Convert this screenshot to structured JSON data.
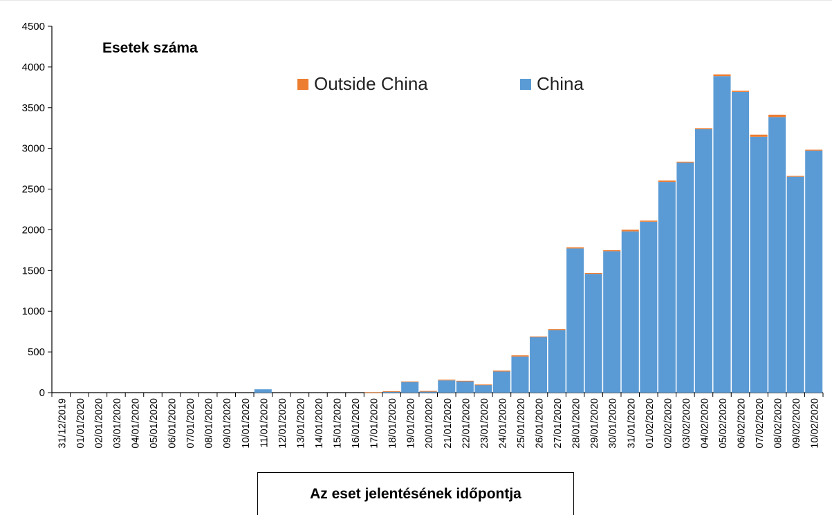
{
  "chart_data": {
    "type": "bar",
    "stacked": true,
    "ylabel": "Esetek száma",
    "xlabel": "Az eset jelentésének időpontja",
    "ylim": [
      0,
      4500
    ],
    "yticks": [
      0,
      500,
      1000,
      1500,
      2000,
      2500,
      3000,
      3500,
      4000,
      4500
    ],
    "grid": false,
    "legend_position": "top-center",
    "categories": [
      "31/12/2019",
      "01/01/2020",
      "02/01/2020",
      "03/01/2020",
      "04/01/2020",
      "05/01/2020",
      "06/01/2020",
      "07/01/2020",
      "08/01/2020",
      "09/01/2020",
      "10/01/2020",
      "11/01/2020",
      "12/01/2020",
      "13/01/2020",
      "14/01/2020",
      "15/01/2020",
      "16/01/2020",
      "17/01/2020",
      "18/01/2020",
      "19/01/2020",
      "20/01/2020",
      "21/01/2020",
      "22/01/2020",
      "23/01/2020",
      "24/01/2020",
      "25/01/2020",
      "26/01/2020",
      "27/01/2020",
      "28/01/2020",
      "29/01/2020",
      "30/01/2020",
      "31/01/2020",
      "01/02/2020",
      "02/02/2020",
      "03/02/2020",
      "04/02/2020",
      "05/02/2020",
      "06/02/2020",
      "07/02/2020",
      "08/02/2020",
      "09/02/2020",
      "10/02/2020"
    ],
    "series": [
      {
        "name": "China",
        "color": "#5b9bd5",
        "values": [
          0,
          0,
          0,
          0,
          0,
          0,
          0,
          0,
          0,
          0,
          0,
          41,
          0,
          0,
          0,
          0,
          0,
          4,
          17,
          136,
          19,
          151,
          140,
          97,
          259,
          444,
          688,
          769,
          1771,
          1459,
          1737,
          1981,
          2099,
          2589,
          2825,
          3235,
          3887,
          3694,
          3143,
          3385,
          2652,
          2973
        ]
      },
      {
        "name": "Outside China",
        "color": "#ed7d31",
        "values": [
          0,
          0,
          0,
          0,
          0,
          0,
          0,
          0,
          0,
          0,
          0,
          0,
          0,
          0,
          0,
          0,
          0,
          1,
          1,
          1,
          1,
          8,
          6,
          3,
          12,
          14,
          2,
          11,
          14,
          10,
          12,
          20,
          15,
          16,
          12,
          13,
          22,
          14,
          26,
          29,
          10,
          11
        ]
      }
    ]
  }
}
